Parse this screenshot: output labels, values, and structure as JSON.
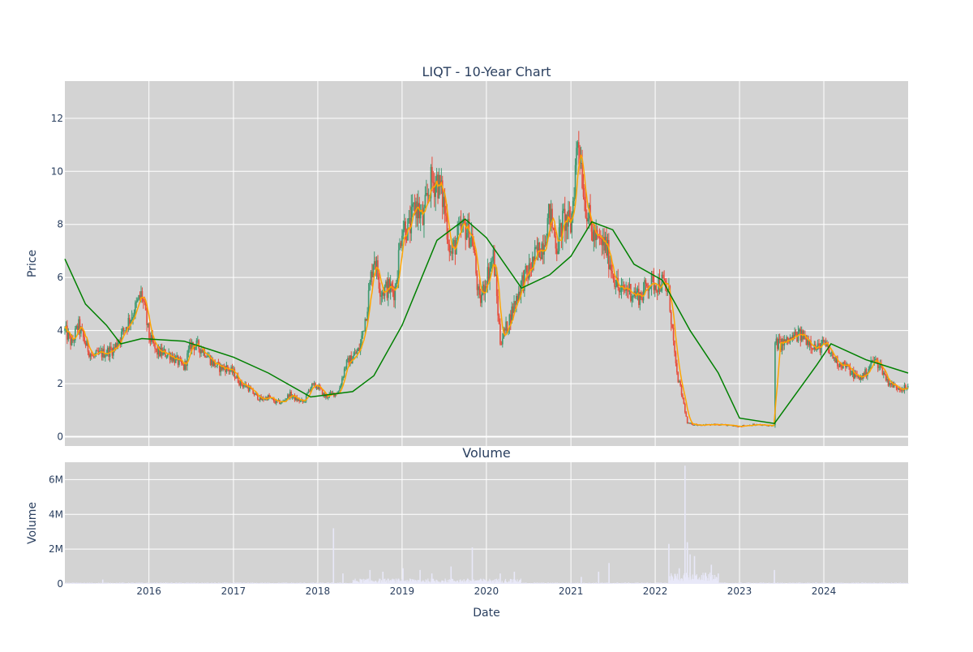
{
  "chart_data": [
    {
      "type": "candlestick",
      "title": "LIQT - 10-Year Chart",
      "ylabel": "Price",
      "xlabel": "",
      "xlim": [
        "2015-01-02",
        "2024-12-31"
      ],
      "ylim": [
        -0.35,
        13.4
      ],
      "y_ticks": [
        0,
        2,
        4,
        6,
        8,
        10,
        12
      ],
      "grid": true,
      "legend": "none",
      "colors": {
        "up": "#3d9970",
        "down": "#e74c3c",
        "ma_short": "#ffa500",
        "ma_long": "#008000",
        "plot_bg": "#d3d3d3"
      },
      "close_keypoints": [
        [
          "2015-01-02",
          4.0
        ],
        [
          "2015-02-01",
          3.5
        ],
        [
          "2015-03-01",
          4.2
        ],
        [
          "2015-04-01",
          3.5
        ],
        [
          "2015-05-01",
          3.0
        ],
        [
          "2015-06-01",
          3.1
        ],
        [
          "2015-07-01",
          3.2
        ],
        [
          "2015-08-01",
          3.3
        ],
        [
          "2015-09-01",
          3.8
        ],
        [
          "2015-10-01",
          4.3
        ],
        [
          "2015-11-01",
          4.8
        ],
        [
          "2015-12-01",
          5.4
        ],
        [
          "2016-01-01",
          3.8
        ],
        [
          "2016-02-01",
          3.2
        ],
        [
          "2016-04-01",
          3.1
        ],
        [
          "2016-06-01",
          2.6
        ],
        [
          "2016-07-01",
          3.5
        ],
        [
          "2016-08-01",
          3.4
        ],
        [
          "2016-09-01",
          3.2
        ],
        [
          "2016-10-01",
          2.8
        ],
        [
          "2016-11-01",
          2.6
        ],
        [
          "2016-12-01",
          2.6
        ],
        [
          "2017-01-01",
          2.4
        ],
        [
          "2017-02-01",
          2.0
        ],
        [
          "2017-03-01",
          1.9
        ],
        [
          "2017-04-01",
          1.6
        ],
        [
          "2017-05-01",
          1.4
        ],
        [
          "2017-06-01",
          1.5
        ],
        [
          "2017-07-01",
          1.3
        ],
        [
          "2017-08-01",
          1.3
        ],
        [
          "2017-09-01",
          1.6
        ],
        [
          "2017-10-01",
          1.4
        ],
        [
          "2017-11-01",
          1.3
        ],
        [
          "2017-12-01",
          1.9
        ],
        [
          "2018-01-01",
          1.9
        ],
        [
          "2018-02-01",
          1.5
        ],
        [
          "2018-03-01",
          1.6
        ],
        [
          "2018-04-01",
          1.7
        ],
        [
          "2018-05-01",
          2.7
        ],
        [
          "2018-06-01",
          3.0
        ],
        [
          "2018-07-01",
          3.3
        ],
        [
          "2018-08-01",
          4.8
        ],
        [
          "2018-09-01",
          6.9
        ],
        [
          "2018-10-01",
          5.5
        ],
        [
          "2018-11-01",
          5.6
        ],
        [
          "2018-12-01",
          5.5
        ],
        [
          "2019-01-01",
          8.0
        ],
        [
          "2019-02-01",
          7.8
        ],
        [
          "2019-03-01",
          8.8
        ],
        [
          "2019-04-01",
          8.1
        ],
        [
          "2019-05-01",
          9.5
        ],
        [
          "2019-06-01",
          9.7
        ],
        [
          "2019-07-01",
          8.8
        ],
        [
          "2019-08-01",
          6.8
        ],
        [
          "2019-09-01",
          7.6
        ],
        [
          "2019-10-01",
          7.9
        ],
        [
          "2019-11-01",
          7.5
        ],
        [
          "2019-12-01",
          5.0
        ],
        [
          "2020-01-01",
          6.0
        ],
        [
          "2020-02-01",
          6.8
        ],
        [
          "2020-03-01",
          3.6
        ],
        [
          "2020-04-01",
          4.2
        ],
        [
          "2020-05-01",
          5.0
        ],
        [
          "2020-06-01",
          5.8
        ],
        [
          "2020-07-01",
          6.2
        ],
        [
          "2020-08-01",
          6.8
        ],
        [
          "2020-09-01",
          7.3
        ],
        [
          "2020-10-01",
          8.4
        ],
        [
          "2020-11-01",
          7.2
        ],
        [
          "2020-12-01",
          8.2
        ],
        [
          "2021-01-01",
          7.9
        ],
        [
          "2021-02-01",
          11.5
        ],
        [
          "2021-03-01",
          9.0
        ],
        [
          "2021-04-01",
          7.7
        ],
        [
          "2021-05-01",
          7.3
        ],
        [
          "2021-06-01",
          7.2
        ],
        [
          "2021-07-01",
          6.2
        ],
        [
          "2021-08-01",
          5.4
        ],
        [
          "2021-09-01",
          5.6
        ],
        [
          "2021-10-01",
          5.4
        ],
        [
          "2021-11-01",
          5.3
        ],
        [
          "2021-12-01",
          5.8
        ],
        [
          "2022-01-01",
          5.8
        ],
        [
          "2022-02-01",
          5.8
        ],
        [
          "2022-03-01",
          5.4
        ],
        [
          "2022-04-01",
          2.5
        ],
        [
          "2022-05-01",
          1.4
        ],
        [
          "2022-05-20",
          0.5
        ],
        [
          "2022-07-01",
          0.45
        ],
        [
          "2022-10-01",
          0.45
        ],
        [
          "2023-01-01",
          0.4
        ],
        [
          "2023-03-01",
          0.45
        ],
        [
          "2023-05-31",
          0.42
        ],
        [
          "2023-06-01",
          3.5
        ],
        [
          "2023-07-01",
          3.5
        ],
        [
          "2023-08-01",
          3.6
        ],
        [
          "2023-09-01",
          3.8
        ],
        [
          "2023-10-01",
          3.8
        ],
        [
          "2023-11-01",
          3.6
        ],
        [
          "2023-12-01",
          3.3
        ],
        [
          "2024-01-01",
          3.5
        ],
        [
          "2024-02-01",
          3.1
        ],
        [
          "2024-03-01",
          2.8
        ],
        [
          "2024-04-01",
          2.7
        ],
        [
          "2024-05-01",
          2.4
        ],
        [
          "2024-06-01",
          2.2
        ],
        [
          "2024-07-01",
          2.4
        ],
        [
          "2024-08-01",
          2.9
        ],
        [
          "2024-09-01",
          2.7
        ],
        [
          "2024-10-01",
          2.1
        ],
        [
          "2024-11-01",
          1.9
        ],
        [
          "2024-12-31",
          1.8
        ]
      ],
      "ma_long_keypoints": [
        [
          "2015-01-02",
          6.7
        ],
        [
          "2015-04-01",
          5.0
        ],
        [
          "2015-07-01",
          4.2
        ],
        [
          "2015-09-01",
          3.5
        ],
        [
          "2015-12-01",
          3.7
        ],
        [
          "2016-06-01",
          3.6
        ],
        [
          "2017-01-01",
          3.0
        ],
        [
          "2017-06-01",
          2.4
        ],
        [
          "2017-12-01",
          1.5
        ],
        [
          "2018-06-01",
          1.7
        ],
        [
          "2018-09-01",
          2.3
        ],
        [
          "2019-01-01",
          4.2
        ],
        [
          "2019-06-01",
          7.4
        ],
        [
          "2019-10-01",
          8.2
        ],
        [
          "2020-01-01",
          7.5
        ],
        [
          "2020-06-01",
          5.6
        ],
        [
          "2020-10-01",
          6.1
        ],
        [
          "2021-01-01",
          6.8
        ],
        [
          "2021-04-01",
          8.1
        ],
        [
          "2021-07-01",
          7.8
        ],
        [
          "2021-10-01",
          6.5
        ],
        [
          "2022-02-01",
          5.9
        ],
        [
          "2022-06-01",
          4.0
        ],
        [
          "2022-10-01",
          2.4
        ],
        [
          "2023-01-01",
          0.7
        ],
        [
          "2023-06-01",
          0.5
        ],
        [
          "2023-12-01",
          2.7
        ],
        [
          "2024-02-01",
          3.5
        ],
        [
          "2024-07-01",
          2.9
        ],
        [
          "2024-12-31",
          2.4
        ]
      ]
    },
    {
      "type": "bar",
      "title": "Volume",
      "ylabel": "Volume",
      "xlabel": "Date",
      "ylim": [
        0,
        7000000
      ],
      "y_ticks": [
        0,
        2000000,
        4000000,
        6000000
      ],
      "y_tick_labels": [
        "0",
        "2M",
        "4M",
        "6M"
      ],
      "x_ticks": [
        "2016-01-01",
        "2017-01-01",
        "2018-01-01",
        "2019-01-01",
        "2020-01-01",
        "2021-01-01",
        "2022-01-01",
        "2023-01-01",
        "2024-01-01"
      ],
      "x_tick_labels": [
        "2016",
        "2017",
        "2018",
        "2019",
        "2020",
        "2021",
        "2022",
        "2023",
        "2024"
      ],
      "grid": true,
      "colors": {
        "bar": "#e8e8f8",
        "plot_bg": "#d3d3d3"
      },
      "spikes": [
        [
          "2015-06-15",
          250000
        ],
        [
          "2018-03-10",
          3200000
        ],
        [
          "2018-04-20",
          600000
        ],
        [
          "2018-08-15",
          800000
        ],
        [
          "2018-10-10",
          700000
        ],
        [
          "2019-01-05",
          900000
        ],
        [
          "2019-03-20",
          800000
        ],
        [
          "2019-05-10",
          600000
        ],
        [
          "2019-08-01",
          1000000
        ],
        [
          "2019-11-01",
          2100000
        ],
        [
          "2020-03-01",
          600000
        ],
        [
          "2020-05-01",
          700000
        ],
        [
          "2021-02-15",
          400000
        ],
        [
          "2021-05-01",
          700000
        ],
        [
          "2021-06-15",
          1200000
        ],
        [
          "2022-03-01",
          2300000
        ],
        [
          "2022-04-15",
          900000
        ],
        [
          "2022-05-10",
          6800000
        ],
        [
          "2022-05-20",
          2400000
        ],
        [
          "2022-06-01",
          1700000
        ],
        [
          "2022-06-20",
          1600000
        ],
        [
          "2022-09-01",
          1100000
        ],
        [
          "2022-10-01",
          600000
        ],
        [
          "2023-06-01",
          800000
        ]
      ]
    }
  ]
}
